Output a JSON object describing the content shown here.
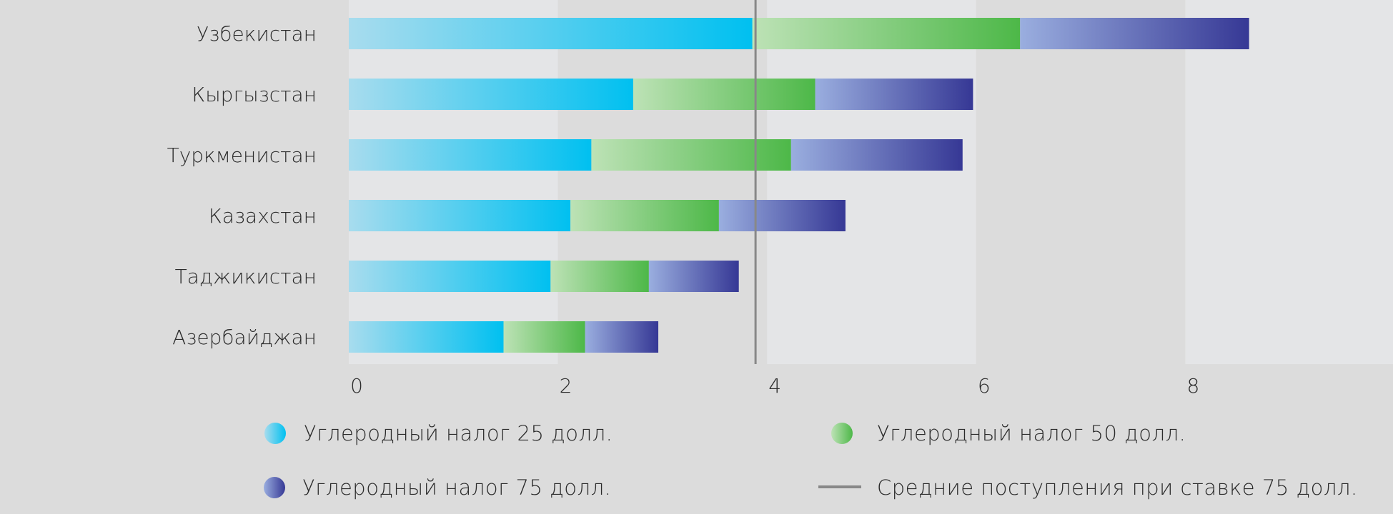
{
  "chart_data": {
    "type": "bar",
    "orientation": "horizontal",
    "stacked": true,
    "title": "",
    "xlabel": "",
    "ylabel": "",
    "xlim": [
      0,
      10
    ],
    "x_ticks": [
      "0",
      "2",
      "4",
      "6",
      "8"
    ],
    "categories": [
      "Узбекистан",
      "Кыргызстан",
      "Туркменистан",
      "Казахстан",
      "Таджикистан",
      "Азербайджан"
    ],
    "series": [
      {
        "name": "Углеродный налог 25 долл.",
        "values": [
          3.86,
          2.72,
          2.32,
          2.12,
          1.93,
          1.48
        ],
        "color_start": "#a8dcee",
        "color_end": "#00c0f0"
      },
      {
        "name": "Углеродный налог 50 долл.",
        "values": [
          2.56,
          1.74,
          1.91,
          1.42,
          0.94,
          0.78
        ],
        "color_start": "#bde2b6",
        "color_end": "#4db848"
      },
      {
        "name": "Углеродный налог 75 долл.",
        "values": [
          2.19,
          1.51,
          1.64,
          1.21,
          0.86,
          0.7
        ],
        "color_start": "#9aaedf",
        "color_end": "#363895"
      }
    ],
    "reference_line": {
      "name": "Средние поступления при ставке 75 долл.",
      "value": 3.89,
      "color": "#888888"
    },
    "legend": {
      "position": "bottom"
    }
  },
  "colors": {
    "background": "#dcdcdc",
    "band_light": "#e4e5e7",
    "band_dark": "#dcdcdc",
    "text": "#2b2b2b"
  }
}
